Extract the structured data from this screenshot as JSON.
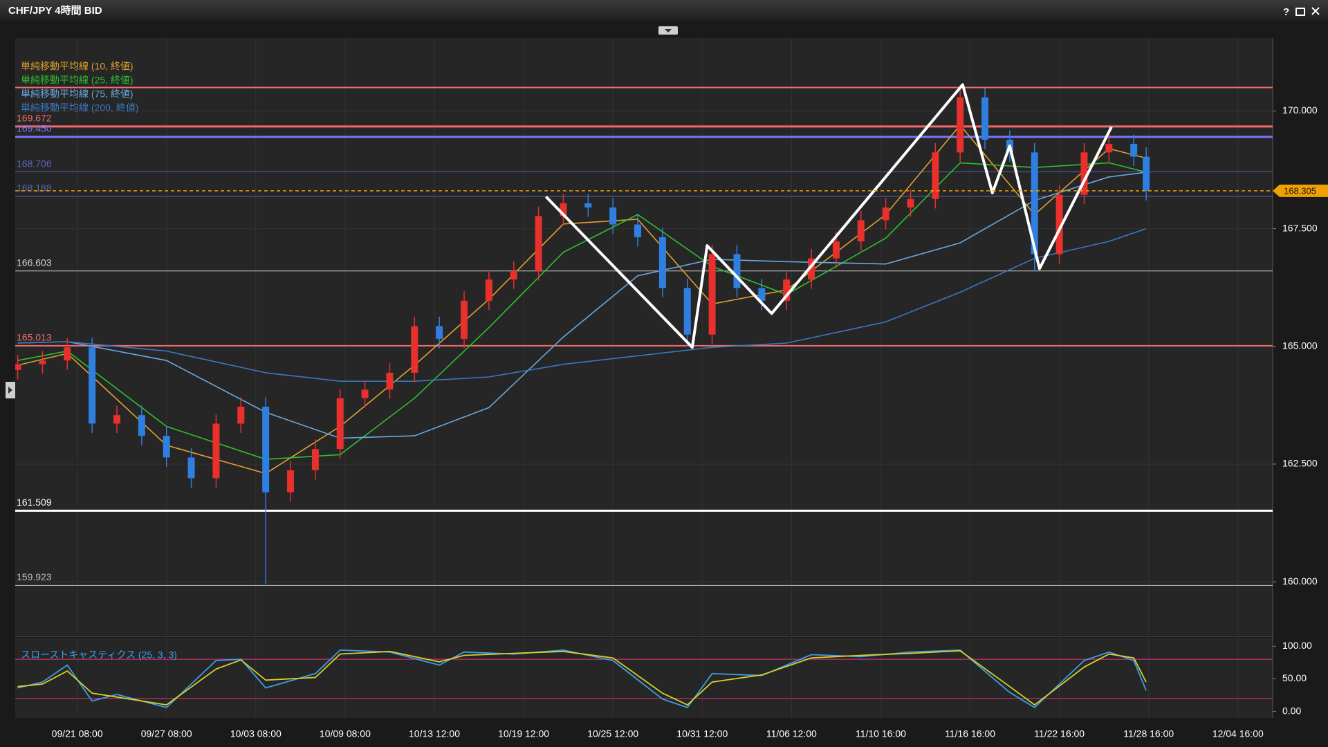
{
  "window": {
    "title": "CHF/JPY 4時間 BID",
    "help": "?"
  },
  "chart_data": {
    "type": "candlestick",
    "x": [
      0,
      10,
      20,
      30,
      40,
      50,
      60,
      70,
      80,
      90,
      100,
      110,
      120,
      130,
      140,
      150,
      160,
      170,
      180,
      190,
      200,
      210,
      220,
      230,
      240,
      250,
      260,
      270,
      280,
      290,
      300,
      310,
      320,
      330,
      340,
      350,
      360,
      370,
      380,
      390,
      400,
      410,
      420,
      430,
      440,
      450,
      455
    ],
    "open": [
      164.5,
      164.62,
      164.7,
      164.98,
      163.36,
      163.54,
      163.1,
      162.64,
      162.2,
      163.36,
      163.72,
      161.9,
      162.37,
      162.82,
      163.9,
      164.08,
      164.44,
      165.43,
      165.16,
      165.97,
      166.42,
      166.6,
      167.77,
      168.04,
      167.95,
      167.59,
      167.32,
      166.24,
      165.25,
      166.96,
      166.24,
      165.97,
      166.42,
      166.87,
      167.23,
      167.68,
      167.95,
      168.13,
      169.12,
      170.29,
      169.39,
      169.12,
      166.96,
      168.22,
      169.12,
      169.3,
      169.03
    ],
    "high": [
      164.82,
      164.9,
      165.18,
      165.18,
      163.74,
      163.74,
      163.3,
      162.84,
      163.56,
      163.92,
      163.92,
      162.57,
      163.02,
      164.1,
      164.28,
      164.64,
      165.63,
      165.63,
      166.17,
      166.62,
      166.8,
      167.97,
      168.24,
      168.24,
      168.15,
      167.79,
      167.52,
      166.44,
      167.16,
      167.16,
      166.44,
      166.62,
      167.07,
      167.43,
      167.88,
      168.15,
      168.33,
      169.32,
      170.55,
      170.49,
      169.59,
      169.32,
      168.42,
      169.32,
      169.5,
      169.5,
      169.23
    ],
    "low": [
      164.3,
      164.42,
      164.5,
      163.16,
      163.16,
      162.9,
      162.44,
      162.0,
      162.0,
      163.16,
      159.95,
      161.7,
      162.17,
      162.62,
      163.7,
      163.88,
      164.24,
      164.96,
      164.96,
      165.77,
      166.22,
      166.4,
      167.57,
      167.75,
      167.39,
      167.12,
      166.04,
      165.0,
      165.05,
      166.04,
      165.77,
      165.77,
      166.22,
      166.67,
      167.03,
      167.48,
      167.75,
      167.93,
      168.92,
      169.19,
      168.92,
      166.6,
      166.76,
      168.02,
      168.92,
      168.83,
      168.1
    ],
    "close": [
      164.62,
      164.7,
      164.98,
      163.36,
      163.54,
      163.1,
      162.64,
      162.2,
      163.36,
      163.72,
      161.9,
      162.37,
      162.82,
      163.9,
      164.08,
      164.44,
      165.43,
      165.16,
      165.97,
      166.42,
      166.6,
      167.77,
      168.04,
      167.95,
      167.59,
      167.32,
      166.24,
      165.25,
      166.96,
      166.24,
      165.97,
      166.42,
      166.87,
      167.23,
      167.68,
      167.95,
      168.13,
      169.12,
      170.29,
      169.39,
      169.12,
      166.96,
      168.22,
      169.12,
      169.3,
      169.03,
      168.305
    ],
    "up_color": "#e8302c",
    "down_color": "#2f7fe0",
    "xlim": [
      -1,
      506
    ],
    "ylim": [
      158.87,
      171.55
    ],
    "xticks": [
      {
        "value": 24,
        "label": "09/21 08:00"
      },
      {
        "value": 60,
        "label": "09/27 08:00"
      },
      {
        "value": 96,
        "label": "10/03 08:00"
      },
      {
        "value": 132,
        "label": "10/09 08:00"
      },
      {
        "value": 168,
        "label": "10/13 12:00"
      },
      {
        "value": 204,
        "label": "10/19 12:00"
      },
      {
        "value": 240,
        "label": "10/25 12:00"
      },
      {
        "value": 276,
        "label": "10/31 12:00"
      },
      {
        "value": 312,
        "label": "11/06 12:00"
      },
      {
        "value": 348,
        "label": "11/10 16:00"
      },
      {
        "value": 384,
        "label": "11/16 16:00"
      },
      {
        "value": 420,
        "label": "11/22 16:00"
      },
      {
        "value": 456,
        "label": "11/28 16:00"
      },
      {
        "value": 492,
        "label": "12/04 16:00"
      }
    ],
    "yticks": [
      {
        "value": 160,
        "label": "160.000"
      },
      {
        "value": 162.5,
        "label": "162.500"
      },
      {
        "value": 165,
        "label": "165.000"
      },
      {
        "value": 167.5,
        "label": "167.500"
      },
      {
        "value": 170,
        "label": "170.000"
      }
    ],
    "grid": true,
    "series": [
      {
        "name": "単純移動平均線 (10, 終値)",
        "color": "#e0a030",
        "x": [
          0,
          20,
          60,
          100,
          130,
          160,
          190,
          220,
          250,
          280,
          310,
          350,
          380,
          410,
          440,
          455
        ],
        "values": [
          164.6,
          164.85,
          162.9,
          162.3,
          163.3,
          164.6,
          166.0,
          167.6,
          167.7,
          165.9,
          166.2,
          167.8,
          169.7,
          167.8,
          169.2,
          169.0
        ]
      },
      {
        "name": "単純移動平均線 (25, 終値)",
        "color": "#2ec02e",
        "x": [
          0,
          20,
          60,
          100,
          130,
          160,
          190,
          220,
          250,
          280,
          310,
          350,
          380,
          410,
          440,
          455
        ],
        "values": [
          164.7,
          164.9,
          163.3,
          162.6,
          162.7,
          163.9,
          165.4,
          167.0,
          167.8,
          166.7,
          166.1,
          167.3,
          168.9,
          168.8,
          168.9,
          168.7
        ]
      },
      {
        "name": "単純移動平均線 (75, 終値)",
        "color": "#6aa8e0",
        "x": [
          0,
          20,
          60,
          100,
          130,
          160,
          190,
          220,
          250,
          280,
          310,
          350,
          380,
          410,
          440,
          455
        ],
        "values": [
          165.07,
          165.1,
          164.7,
          163.6,
          163.05,
          163.1,
          163.7,
          165.2,
          166.5,
          166.85,
          166.8,
          166.75,
          167.2,
          168.1,
          168.6,
          168.7
        ]
      },
      {
        "name": "単純移動平均線 (200, 終値)",
        "color": "#3a78c0",
        "x": [
          0,
          20,
          60,
          100,
          130,
          160,
          190,
          220,
          250,
          280,
          310,
          350,
          380,
          410,
          440,
          455
        ],
        "values": [
          165.07,
          165.1,
          164.9,
          164.44,
          164.26,
          164.26,
          164.35,
          164.62,
          164.8,
          164.98,
          165.07,
          165.52,
          166.15,
          166.87,
          167.23,
          167.5
        ]
      }
    ],
    "levels": [
      {
        "price": 170.5,
        "color": "#f06a6a",
        "width": 2,
        "show_label": false
      },
      {
        "price": 169.672,
        "color": "#f06a6a",
        "width": 3,
        "show_label": true
      },
      {
        "price": {
          "value": 169.45,
          "label": "169.450"
        },
        "color": "#7777ff",
        "width": 3,
        "show_label": true
      },
      {
        "price": 168.706,
        "color": "#5a66b8",
        "width": 1,
        "show_label": true
      },
      {
        "price": 168.188,
        "color": "#5a66b8",
        "width": 1,
        "show_label": true
      },
      {
        "price": 166.603,
        "color": "#cfcfcf",
        "width": 1,
        "show_label": true
      },
      {
        "price": 165.013,
        "color": "#f06a6a",
        "width": 2,
        "show_label": true
      },
      {
        "price": 161.509,
        "color": "#ffffff",
        "width": 3,
        "show_label": true
      },
      {
        "price": 159.923,
        "color": "#bdbdbd",
        "width": 1,
        "show_label": true
      }
    ],
    "current_price": {
      "value": 168.305,
      "color": "#f0a000"
    },
    "trendline": {
      "color": "#ffffff",
      "x": [
        213,
        272,
        278,
        304,
        381,
        393,
        400,
        412,
        441
      ],
      "y": [
        168.18,
        164.98,
        167.14,
        165.7,
        170.56,
        168.26,
        169.26,
        166.65,
        169.66
      ]
    },
    "indicator": {
      "type": "line",
      "title": "スローストキャスティクス (25, 3, 3)",
      "ylim": [
        -10,
        113
      ],
      "yticks": [
        {
          "value": 0,
          "label": "0.00"
        },
        {
          "value": 50,
          "label": "50.00"
        },
        {
          "value": 100,
          "label": "100.00"
        }
      ],
      "levels": [
        20,
        80
      ],
      "level_color": "#c0306a",
      "series": [
        {
          "color": "#3aa0e8",
          "x": [
            0,
            10,
            20,
            30,
            40,
            60,
            80,
            90,
            100,
            120,
            130,
            150,
            170,
            180,
            200,
            220,
            240,
            260,
            270,
            280,
            300,
            320,
            340,
            360,
            380,
            400,
            410,
            430,
            440,
            450,
            455
          ],
          "values": [
            36,
            45,
            71,
            16,
            26,
            6,
            78,
            80,
            36,
            58,
            94,
            91,
            71,
            91,
            88,
            94,
            78,
            19,
            6,
            58,
            55,
            87,
            84,
            91,
            94,
            29,
            6,
            78,
            91,
            78,
            32
          ]
        },
        {
          "color": "#d8d028",
          "x": [
            0,
            10,
            20,
            30,
            40,
            60,
            80,
            90,
            100,
            120,
            130,
            150,
            170,
            180,
            200,
            220,
            240,
            260,
            270,
            280,
            300,
            320,
            340,
            360,
            380,
            400,
            410,
            430,
            440,
            450,
            455
          ],
          "values": [
            38,
            42,
            62,
            28,
            22,
            10,
            65,
            79,
            48,
            52,
            88,
            92,
            76,
            86,
            89,
            92,
            82,
            28,
            10,
            45,
            56,
            82,
            86,
            89,
            93,
            38,
            10,
            68,
            88,
            82,
            45
          ]
        }
      ]
    }
  }
}
